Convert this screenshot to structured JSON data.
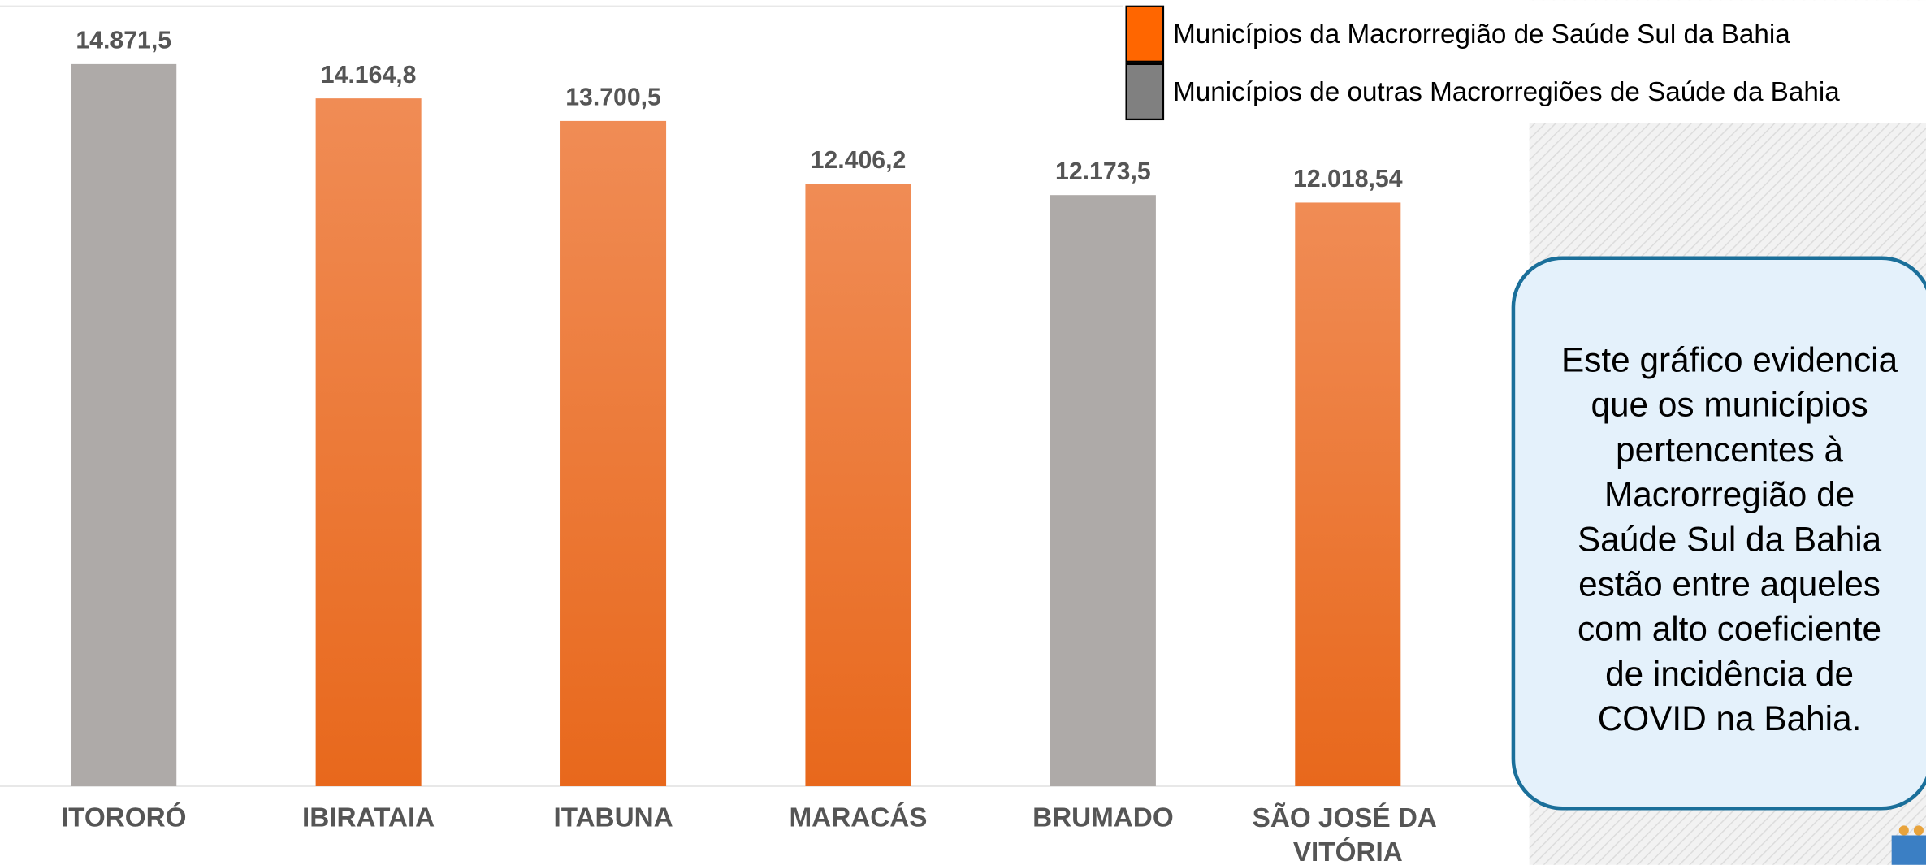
{
  "chart_data": {
    "type": "bar",
    "categories": [
      "ITORORÓ",
      "IBIRATAIA",
      "ITABUNA",
      "MARACÁS",
      "BRUMADO",
      "SÃO JOSÉ DA VITÓRIA"
    ],
    "values": [
      14871.5,
      14164.8,
      13700.5,
      12406.2,
      12173.5,
      12018.54
    ],
    "value_labels": [
      "14.871,5",
      "14.164,8",
      "13.700,5",
      "12.406,2",
      "12.173,5",
      "12.018,54"
    ],
    "colors": [
      "#aeaaa8",
      "#ef7a35",
      "#ef7a35",
      "#ef7a35",
      "#aeaaa8",
      "#ef7a35"
    ],
    "ylim": [
      0,
      16000
    ],
    "legend": [
      {
        "name": "Municípios da Macrorregião de Saúde Sul da Bahia",
        "color": "#ff6600"
      },
      {
        "name": "Municípios de outras Macrorregiões de Saúde da Bahia",
        "color": "#808080"
      }
    ],
    "annotation": [
      "Este gráfico evidencia",
      "que os municípios",
      "pertencentes à",
      "Macrorregião de",
      "Saúde Sul da Bahia",
      "estão entre aqueles",
      "com alto coeficiente",
      "de incidência de",
      "COVID na Bahia."
    ]
  }
}
